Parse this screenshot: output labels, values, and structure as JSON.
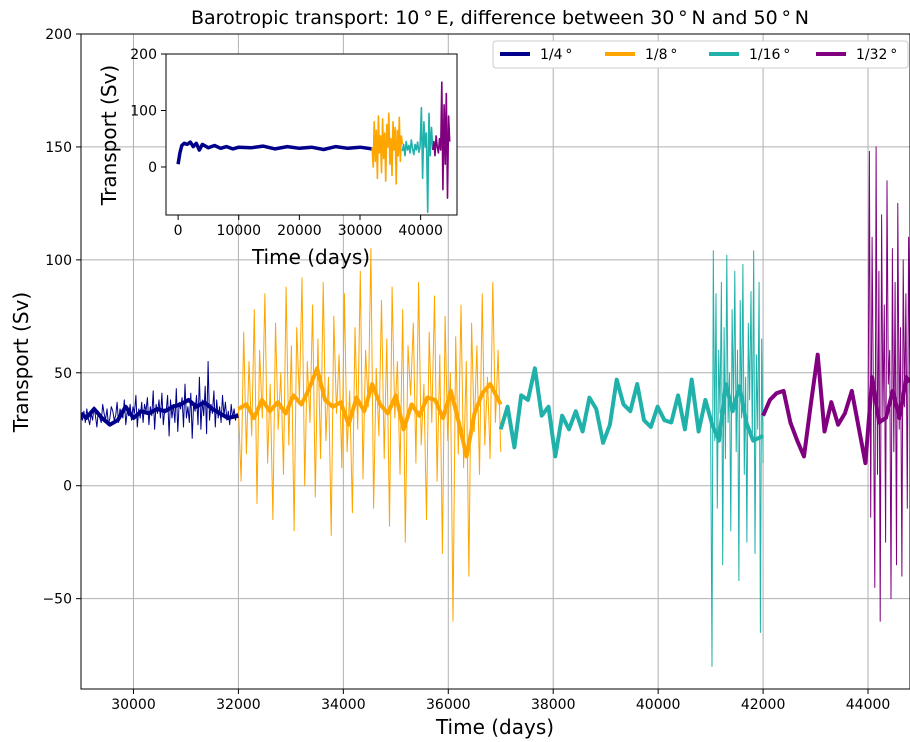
{
  "chart_data": [
    {
      "type": "line",
      "title": "Barotropic transport: 10$^\\circ$E, difference between 30$^\\circ$N and 50$^\\circ$N",
      "title_display": "Barotropic transport: 10 ° E, difference between 30 ° N and 50 ° N",
      "xlabel": "Time (days)",
      "ylabel": "Transport (Sv)",
      "xlim": [
        29000,
        44800
      ],
      "ylim": [
        -90,
        200
      ],
      "xticks": [
        30000,
        32000,
        34000,
        36000,
        38000,
        40000,
        42000,
        44000
      ],
      "yticks": [
        -50,
        0,
        50,
        100,
        150,
        200
      ],
      "ytick_labels": [
        "−50",
        "0",
        "50",
        "100",
        "150",
        "200"
      ],
      "grid": true,
      "legend": "top-right",
      "series": [
        {
          "name": "1/4 °",
          "color": "#00008b",
          "style": "thick-mean",
          "x": [
            29000,
            29100,
            29250,
            29400,
            29550,
            29700,
            29850,
            30000,
            30150,
            30300,
            30450,
            30600,
            30750,
            30900,
            31050,
            31200,
            31350,
            31500,
            31650,
            31800,
            32000
          ],
          "y": [
            32,
            30,
            34,
            30,
            27,
            29,
            35,
            30,
            33,
            32,
            34,
            33,
            35,
            36,
            38,
            35,
            37,
            34,
            32,
            30,
            31
          ]
        },
        {
          "name": "1/4 ° daily",
          "color": "#00008b",
          "style": "thin-noisy",
          "x_start": 29000,
          "x_end": 32000,
          "y": [
            31,
            29,
            33,
            28,
            34,
            30,
            27,
            32,
            29,
            35,
            31,
            26,
            33,
            30,
            28,
            36,
            32,
            29,
            34,
            27,
            30,
            35,
            33,
            29,
            31,
            37,
            28,
            34,
            32,
            30,
            38,
            27,
            33,
            31,
            36,
            29,
            35,
            32,
            40,
            26,
            34,
            30,
            37,
            28,
            36,
            33,
            39,
            27,
            35,
            31,
            42,
            25,
            36,
            32,
            38,
            30,
            41,
            27,
            34,
            33,
            40,
            22,
            38,
            30,
            36,
            28,
            43,
            24,
            37,
            34,
            39,
            26,
            45,
            30,
            35,
            28,
            41,
            21,
            36,
            33,
            40,
            27,
            48,
            25,
            38,
            31,
            44,
            23,
            55,
            29,
            36,
            32,
            42,
            26,
            38,
            30,
            35,
            28,
            40,
            31,
            37,
            29,
            33,
            27,
            36,
            30,
            34,
            29,
            32,
            30
          ]
        },
        {
          "name": "1/8 °",
          "color": "#ffa500",
          "style": "thick-mean",
          "x": [
            32000,
            32150,
            32300,
            32450,
            32600,
            32750,
            32900,
            33050,
            33200,
            33350,
            33500,
            33650,
            33800,
            33950,
            34100,
            34250,
            34400,
            34550,
            34700,
            34850,
            35000,
            35150,
            35300,
            35450,
            35600,
            35750,
            35900,
            36050,
            36200,
            36350,
            36500,
            36650,
            36800,
            37000
          ],
          "y": [
            34,
            36,
            30,
            38,
            33,
            37,
            32,
            40,
            36,
            43,
            52,
            38,
            35,
            37,
            27,
            39,
            33,
            45,
            36,
            32,
            40,
            25,
            36,
            31,
            39,
            38,
            30,
            42,
            28,
            13,
            32,
            41,
            45,
            36
          ]
        },
        {
          "name": "1/8 ° daily",
          "color": "#ffa500",
          "style": "thin-noisy",
          "x_start": 32000,
          "x_end": 37000,
          "y": [
            35,
            2,
            68,
            14,
            55,
            22,
            78,
            -8,
            60,
            30,
            85,
            10,
            45,
            -15,
            72,
            25,
            50,
            5,
            88,
            18,
            62,
            -20,
            70,
            38,
            92,
            0,
            55,
            28,
            80,
            -5,
            65,
            12,
            90,
            20,
            48,
            -22,
            75,
            32,
            58,
            8,
            85,
            15,
            42,
            -12,
            70,
            25,
            95,
            3,
            60,
            35,
            105,
            -10,
            52,
            22,
            82,
            12,
            65,
            -18,
            88,
            30,
            55,
            5,
            78,
            -25,
            62,
            40,
            72,
            10,
            90,
            18,
            45,
            -15,
            68,
            28,
            84,
            2,
            58,
            -30,
            75,
            20,
            50,
            -60,
            66,
            14,
            80,
            8,
            55,
            -40,
            72,
            24,
            62,
            5,
            85,
            18,
            48,
            12,
            90,
            28,
            60,
            15
          ]
        },
        {
          "name": "1/16 °",
          "color": "#20b2aa",
          "style": "thick-mean",
          "x": [
            37000,
            37130,
            37260,
            37390,
            37520,
            37650,
            37780,
            37910,
            38040,
            38170,
            38300,
            38430,
            38560,
            38690,
            38820,
            38950,
            39080,
            39210,
            39340,
            39470,
            39600,
            39730,
            39860,
            39990,
            40120,
            40250,
            40380,
            40510,
            40640,
            40770,
            40900,
            41030,
            41160,
            41290,
            41420,
            41550,
            41680,
            41810,
            42000
          ],
          "y": [
            25,
            35,
            17,
            40,
            38,
            52,
            31,
            35,
            13,
            31,
            25,
            33,
            24,
            39,
            34,
            19,
            27,
            47,
            36,
            33,
            45,
            29,
            26,
            35,
            29,
            28,
            40,
            25,
            47,
            24,
            38,
            27,
            20,
            45,
            33,
            44,
            28,
            20,
            22
          ]
        },
        {
          "name": "1/16 ° daily",
          "color": "#20b2aa",
          "style": "thin-noisy",
          "x_start": 41000,
          "x_end": 42000,
          "y": [
            30,
            -80,
            104,
            20,
            85,
            -10,
            60,
            32,
            90,
            -35,
            70,
            12,
            102,
            28,
            50,
            -20,
            78,
            35,
            95,
            15,
            60,
            -42,
            82,
            30,
            98,
            5,
            48,
            -25,
            72,
            38,
            86,
            20,
            104,
            -30,
            58,
            25,
            90,
            -65,
            65,
            10
          ]
        },
        {
          "name": "1/32 °",
          "color": "#800080",
          "style": "thick-mean",
          "x": [
            42000,
            42130,
            42260,
            42390,
            42520,
            42650,
            42780,
            42910,
            43040,
            43170,
            43300,
            43430,
            43560,
            43690,
            43820,
            43950,
            44080,
            44210,
            44340,
            44470,
            44600,
            44730,
            44800
          ],
          "y": [
            31,
            38,
            41,
            42,
            28,
            20,
            13,
            36,
            58,
            24,
            37,
            27,
            32,
            42,
            26,
            10,
            48,
            28,
            30,
            42,
            30,
            48,
            46
          ]
        },
        {
          "name": "1/32 ° daily",
          "color": "#800080",
          "style": "thin-noisy",
          "x_start": 44000,
          "x_end": 44800,
          "y": [
            20,
            148,
            -14,
            110,
            40,
            -45,
            150,
            5,
            95,
            -60,
            120,
            30,
            80,
            -25,
            135,
            45,
            60,
            -50,
            105,
            15,
            90,
            -35,
            125,
            25,
            70,
            -40,
            100,
            35,
            85,
            -10,
            110,
            40
          ]
        }
      ]
    },
    {
      "type": "line",
      "inset": true,
      "xlabel": "Time (days)",
      "ylabel": "Transport (Sv)",
      "xlim": [
        -2000,
        46000
      ],
      "ylim": [
        -85,
        200
      ],
      "xticks": [
        0,
        10000,
        20000,
        30000,
        40000
      ],
      "yticks": [
        0,
        100,
        200
      ],
      "series": [
        {
          "name": "1/4 °",
          "color": "#00008b",
          "x": [
            0,
            300,
            600,
            1000,
            1500,
            2000,
            2500,
            3000,
            3500,
            4000,
            5000,
            6000,
            7000,
            8000,
            9000,
            10000,
            12000,
            14000,
            16000,
            18000,
            20000,
            22000,
            24000,
            26000,
            28000,
            30000,
            32000
          ],
          "y": [
            5,
            25,
            38,
            42,
            40,
            44,
            36,
            42,
            30,
            40,
            34,
            38,
            33,
            36,
            32,
            35,
            34,
            37,
            32,
            36,
            33,
            35,
            31,
            36,
            33,
            35,
            32
          ]
        },
        {
          "name": "1/8 °",
          "color": "#ffa500",
          "x_start": 32000,
          "x_end": 37000,
          "y": [
            35,
            0,
            80,
            10,
            65,
            -20,
            90,
            25,
            55,
            -10,
            85,
            15,
            60,
            -25,
            75,
            35,
            95,
            5,
            50,
            -15,
            80,
            30,
            70,
            -30,
            65,
            20,
            88,
            10,
            55,
            40
          ]
        },
        {
          "name": "1/16 °",
          "color": "#20b2aa",
          "x_start": 37000,
          "x_end": 42000,
          "y": [
            28,
            40,
            20,
            45,
            30,
            38,
            25,
            48,
            33,
            22,
            40,
            30,
            44,
            26,
            36,
            105,
            -20,
            80,
            35,
            60,
            -80,
            95,
            20,
            70,
            30
          ]
        },
        {
          "name": "1/32 °",
          "color": "#800080",
          "x_start": 42000,
          "x_end": 44800,
          "y": [
            30,
            45,
            20,
            55,
            35,
            25,
            50,
            30,
            150,
            -40,
            110,
            5,
            130,
            -55,
            90,
            45
          ]
        }
      ]
    }
  ]
}
